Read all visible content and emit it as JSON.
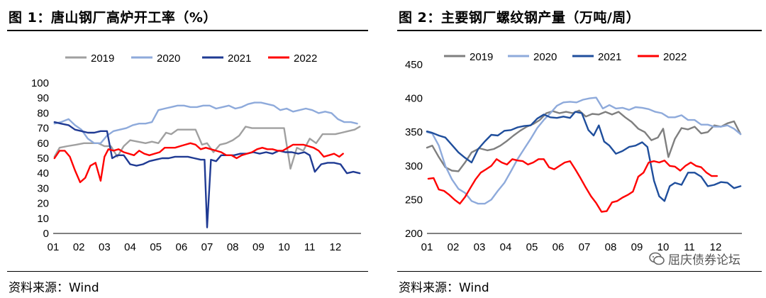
{
  "colors": {
    "2019": "#a0a0a0",
    "2020": "#8eaadb",
    "2021": "#1f3a93",
    "2022": "#ff0000",
    "2019b": "#7f7f7f",
    "2021b": "#1f4e9c"
  },
  "chart_data": [
    {
      "type": "line",
      "title": "图 1：唐山钢厂高炉开工率（%）",
      "source": "资料来源：Wind",
      "xlabel": "",
      "ylabel": "",
      "x_ticks": [
        "01",
        "02",
        "03",
        "04",
        "05",
        "06",
        "07",
        "08",
        "09",
        "10",
        "11",
        "12"
      ],
      "x_range": [
        1,
        13
      ],
      "ylim": [
        0,
        100
      ],
      "y_ticks": [
        0,
        10,
        20,
        30,
        40,
        50,
        60,
        70,
        80,
        90,
        100
      ],
      "legend": "top-center",
      "series": [
        {
          "name": "2019",
          "color": "#a0a0a0",
          "x": [
            1.05,
            1.25,
            1.55,
            1.9,
            2.2,
            2.5,
            2.75,
            3.0,
            3.25,
            3.5,
            3.75,
            4.0,
            4.3,
            4.6,
            4.85,
            5.1,
            5.4,
            5.6,
            5.85,
            6.05,
            6.3,
            6.55,
            6.8,
            7.0,
            7.25,
            7.5,
            7.75,
            8.0,
            8.25,
            8.5,
            8.75,
            9.0,
            9.25,
            9.5,
            9.75,
            10.0,
            10.25,
            10.5,
            10.75,
            11.0,
            11.25,
            11.5,
            11.75,
            12.0,
            12.25,
            12.5,
            12.75,
            12.95
          ],
          "values": [
            51,
            57,
            58,
            59,
            60,
            60,
            60,
            58,
            58,
            51,
            58,
            62,
            61,
            60,
            61,
            60,
            67,
            66,
            69,
            69,
            69,
            69,
            59,
            60,
            54,
            59,
            60,
            62,
            65,
            71,
            70,
            70,
            70,
            70,
            70,
            70,
            43,
            57,
            55,
            63,
            60,
            66,
            66,
            66,
            67,
            68,
            69,
            71
          ]
        },
        {
          "name": "2020",
          "color": "#8eaadb",
          "x": [
            1.05,
            1.3,
            1.6,
            1.85,
            2.1,
            2.35,
            2.6,
            2.85,
            3.1,
            3.35,
            3.6,
            3.85,
            4.1,
            4.35,
            4.6,
            4.85,
            5.1,
            5.35,
            5.6,
            5.85,
            6.1,
            6.35,
            6.6,
            6.85,
            7.1,
            7.35,
            7.6,
            7.85,
            8.1,
            8.35,
            8.6,
            8.85,
            9.1,
            9.35,
            9.6,
            9.85,
            10.1,
            10.35,
            10.6,
            10.85,
            11.1,
            11.35,
            11.6,
            11.85,
            12.1,
            12.35,
            12.6,
            12.85
          ],
          "values": [
            73,
            74,
            76,
            72,
            69,
            63,
            60,
            60,
            65,
            68,
            69,
            70,
            72,
            73,
            73,
            74,
            82,
            83,
            84,
            85,
            85,
            84,
            84,
            85,
            85,
            83,
            84,
            85,
            83,
            84,
            86,
            87,
            87,
            86,
            85,
            82,
            83,
            81,
            82,
            83,
            82,
            80,
            81,
            80,
            76,
            74,
            74,
            73
          ]
        },
        {
          "name": "2021",
          "color": "#1f3a93",
          "x": [
            1.05,
            1.3,
            1.6,
            1.85,
            2.1,
            2.35,
            2.6,
            2.85,
            3.1,
            3.3,
            3.5,
            3.75,
            4.0,
            4.25,
            4.5,
            4.75,
            5.0,
            5.25,
            5.5,
            5.75,
            6.0,
            6.25,
            6.5,
            6.75,
            6.9,
            7.0,
            7.15,
            7.35,
            7.55,
            7.8,
            8.05,
            8.3,
            8.55,
            8.8,
            9.05,
            9.3,
            9.55,
            9.8,
            10.05,
            10.3,
            10.55,
            10.8,
            11.0,
            11.2,
            11.45,
            11.7,
            11.95,
            12.2,
            12.45,
            12.7,
            12.95
          ],
          "values": [
            74,
            73,
            72,
            69,
            68,
            67,
            67,
            68,
            68,
            50,
            52,
            52,
            46,
            45,
            46,
            48,
            49,
            50,
            50,
            51,
            51,
            51,
            50,
            49,
            49,
            4,
            49,
            48,
            52,
            52,
            52,
            53,
            53,
            54,
            53,
            54,
            53,
            55,
            54,
            54,
            53,
            54,
            52,
            41,
            46,
            47,
            47,
            46,
            40,
            41,
            40
          ]
        },
        {
          "name": "2022",
          "color": "#ff0000",
          "x": [
            1.05,
            1.25,
            1.45,
            1.65,
            1.85,
            2.05,
            2.25,
            2.45,
            2.65,
            2.85,
            3.0,
            3.15,
            3.35,
            3.55,
            3.75,
            3.95,
            4.15,
            4.35,
            4.55,
            4.75,
            4.95,
            5.15,
            5.35,
            5.55,
            5.75,
            5.95,
            6.15,
            6.35,
            6.55,
            6.75,
            6.95,
            7.15,
            7.35,
            7.55,
            7.75,
            7.95,
            8.15,
            8.35,
            8.55,
            8.75,
            8.95,
            9.15,
            9.35,
            9.55,
            9.75,
            9.95,
            10.15,
            10.35,
            10.55,
            10.75,
            10.95,
            11.15,
            11.35,
            11.55,
            11.75,
            11.95,
            12.15,
            12.3
          ],
          "values": [
            50,
            55,
            55,
            51,
            42,
            34,
            37,
            45,
            47,
            35,
            51,
            56,
            55,
            56,
            54,
            53,
            52,
            55,
            53,
            52,
            53,
            54,
            57,
            57,
            57,
            58,
            59,
            60,
            59,
            56,
            57,
            56,
            55,
            54,
            52,
            52,
            50,
            52,
            53,
            54,
            56,
            57,
            56,
            56,
            55,
            55,
            57,
            59,
            59,
            59,
            58,
            57,
            55,
            51,
            52,
            53,
            51,
            53
          ]
        }
      ]
    },
    {
      "type": "line",
      "title": "图 2：主要钢厂螺纹钢产量（万吨/周）",
      "source": "资料来源：Wind",
      "xlabel": "",
      "ylabel": "",
      "x_ticks": [
        "01",
        "02",
        "03",
        "04",
        "05",
        "06",
        "07",
        "08",
        "09",
        "10",
        "11",
        "12"
      ],
      "x_range": [
        1,
        13
      ],
      "ylim": [
        200,
        450
      ],
      "y_ticks": [
        200,
        250,
        300,
        350,
        400,
        450
      ],
      "legend": "top-center",
      "series": [
        {
          "name": "2019",
          "color": "#7f7f7f",
          "x": [
            1.0,
            1.2,
            1.45,
            1.7,
            1.95,
            2.2,
            2.45,
            2.7,
            3.0,
            3.3,
            3.55,
            3.8,
            4.05,
            4.3,
            4.55,
            4.8,
            5.05,
            5.3,
            5.55,
            5.8,
            6.05,
            6.3,
            6.55,
            6.8,
            7.05,
            7.3,
            7.55,
            7.8,
            8.05,
            8.3,
            8.55,
            8.8,
            9.05,
            9.3,
            9.55,
            9.8,
            10.0,
            10.2,
            10.45,
            10.7,
            10.95,
            11.2,
            11.45,
            11.7,
            11.95,
            12.2,
            12.45,
            12.7,
            12.95
          ],
          "values": [
            327,
            330,
            313,
            298,
            293,
            292,
            305,
            320,
            326,
            323,
            325,
            330,
            337,
            345,
            352,
            358,
            362,
            368,
            378,
            381,
            378,
            380,
            378,
            382,
            373,
            377,
            376,
            380,
            376,
            380,
            372,
            365,
            355,
            350,
            338,
            342,
            355,
            313,
            340,
            356,
            354,
            358,
            348,
            350,
            360,
            358,
            363,
            366,
            347
          ]
        },
        {
          "name": "2020",
          "color": "#8eaadb",
          "x": [
            1.0,
            1.2,
            1.45,
            1.7,
            1.95,
            2.2,
            2.45,
            2.7,
            2.95,
            3.2,
            3.45,
            3.7,
            3.95,
            4.2,
            4.45,
            4.7,
            4.95,
            5.2,
            5.45,
            5.7,
            5.95,
            6.2,
            6.45,
            6.7,
            6.95,
            7.2,
            7.45,
            7.7,
            7.95,
            8.2,
            8.45,
            8.7,
            8.95,
            9.2,
            9.45,
            9.7,
            9.95,
            10.2,
            10.45,
            10.7,
            10.95,
            11.2,
            11.45,
            11.7,
            11.95,
            12.2,
            12.45,
            12.7,
            12.95
          ],
          "values": [
            350,
            348,
            330,
            300,
            280,
            266,
            260,
            248,
            244,
            244,
            250,
            263,
            275,
            292,
            310,
            325,
            340,
            356,
            368,
            378,
            389,
            394,
            395,
            394,
            398,
            400,
            401,
            385,
            390,
            385,
            386,
            383,
            387,
            386,
            384,
            380,
            378,
            372,
            372,
            375,
            368,
            368,
            361,
            361,
            358,
            358,
            360,
            355,
            347
          ]
        },
        {
          "name": "2021",
          "color": "#1f4e9c",
          "x": [
            1.0,
            1.2,
            1.45,
            1.7,
            1.95,
            2.2,
            2.45,
            2.7,
            2.95,
            3.2,
            3.45,
            3.7,
            3.95,
            4.2,
            4.45,
            4.7,
            4.95,
            5.2,
            5.45,
            5.7,
            5.95,
            6.2,
            6.45,
            6.65,
            6.9,
            7.15,
            7.35,
            7.55,
            7.75,
            7.95,
            8.2,
            8.45,
            8.7,
            8.95,
            9.2,
            9.4,
            9.65,
            9.85,
            10.05,
            10.25,
            10.45,
            10.7,
            10.95,
            11.2,
            11.45,
            11.7,
            11.95,
            12.2,
            12.45,
            12.7,
            12.95
          ],
          "values": [
            351,
            349,
            345,
            342,
            331,
            320,
            312,
            305,
            325,
            336,
            346,
            345,
            352,
            353,
            357,
            359,
            360,
            370,
            376,
            372,
            371,
            373,
            371,
            380,
            378,
            353,
            345,
            360,
            336,
            330,
            318,
            322,
            328,
            330,
            335,
            328,
            278,
            255,
            248,
            270,
            275,
            272,
            290,
            290,
            284,
            270,
            272,
            276,
            275,
            267,
            270
          ]
        },
        {
          "name": "2022",
          "color": "#ff0000",
          "x": [
            1.05,
            1.25,
            1.45,
            1.65,
            1.85,
            2.05,
            2.25,
            2.45,
            2.65,
            2.85,
            3.05,
            3.25,
            3.45,
            3.65,
            3.85,
            4.05,
            4.25,
            4.45,
            4.65,
            4.85,
            5.05,
            5.25,
            5.45,
            5.65,
            5.85,
            6.05,
            6.25,
            6.45,
            6.65,
            6.85,
            7.05,
            7.25,
            7.45,
            7.65,
            7.85,
            8.05,
            8.25,
            8.45,
            8.65,
            8.85,
            9.05,
            9.25,
            9.45,
            9.65,
            9.85,
            10.05,
            10.25,
            10.45,
            10.65,
            10.85,
            11.05,
            11.25,
            11.45,
            11.65,
            11.85,
            12.05
          ],
          "values": [
            281,
            282,
            265,
            263,
            257,
            250,
            244,
            254,
            267,
            280,
            290,
            295,
            300,
            310,
            305,
            302,
            310,
            308,
            307,
            302,
            305,
            310,
            310,
            298,
            295,
            300,
            305,
            307,
            295,
            282,
            268,
            255,
            245,
            232,
            233,
            246,
            248,
            253,
            257,
            262,
            284,
            290,
            305,
            307,
            305,
            308,
            300,
            299,
            293,
            300,
            305,
            300,
            298,
            290,
            285,
            285
          ]
        }
      ]
    }
  ],
  "watermark": {
    "text": "屈庆债券论坛"
  }
}
